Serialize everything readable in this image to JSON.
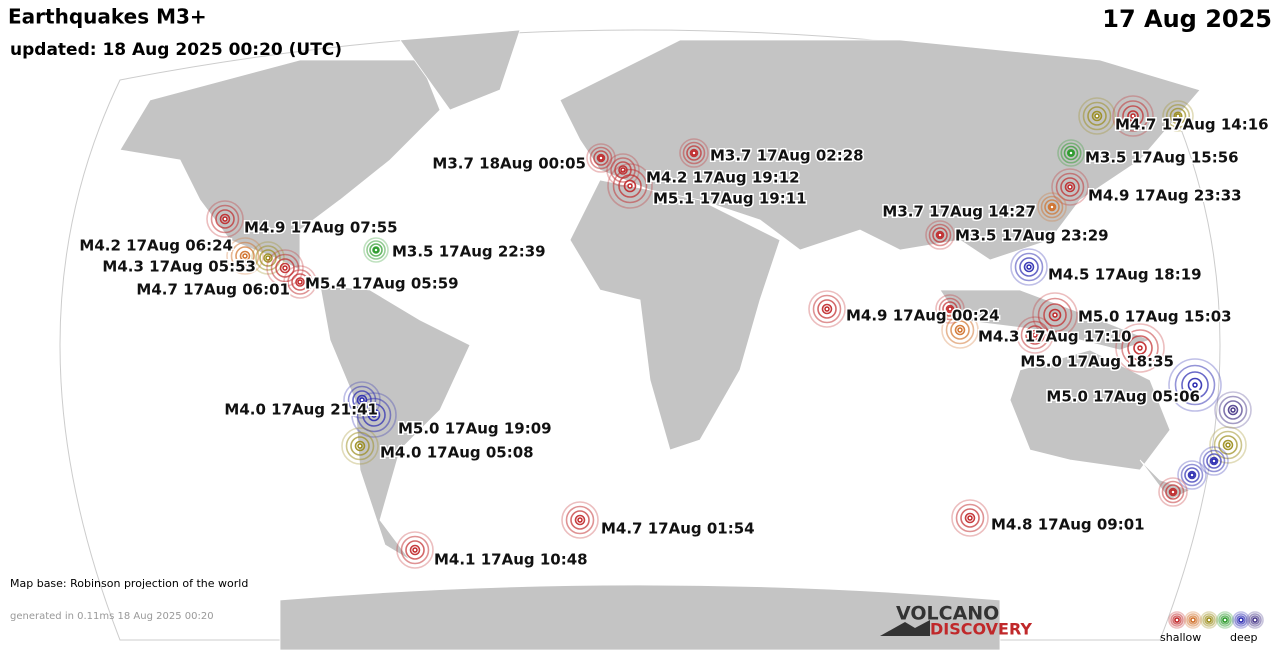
{
  "header": {
    "title": "Earthquakes M3+",
    "date": "17 Aug 2025",
    "updated": "updated: 18 Aug 2025 00:20 (UTC)"
  },
  "events": [
    {
      "label": "M4.7 17Aug 14:16"
    },
    {
      "label": "M3.7 18Aug 00:05"
    },
    {
      "label": "M3.7 17Aug 02:28"
    },
    {
      "label": "M4.2 17Aug 19:12"
    },
    {
      "label": "M5.1 17Aug 19:11"
    },
    {
      "label": "M3.5 17Aug 15:56"
    },
    {
      "label": "M4.9 17Aug 23:33"
    },
    {
      "label": "M4.9 17Aug 07:55"
    },
    {
      "label": "M4.2 17Aug 06:24"
    },
    {
      "label": "M3.5 17Aug 22:39"
    },
    {
      "label": "M4.3 17Aug 05:53"
    },
    {
      "label": "M4.7 17Aug 06:01"
    },
    {
      "label": "M5.4 17Aug 05:59"
    },
    {
      "label": "M3.7 17Aug 14:27"
    },
    {
      "label": "M3.5 17Aug 23:29"
    },
    {
      "label": "M4.5 17Aug 18:19"
    },
    {
      "label": "M4.9 17Aug 00:24"
    },
    {
      "label": "M5.0 17Aug 15:03"
    },
    {
      "label": "M4.3 17Aug 17:10"
    },
    {
      "label": "M5.0 17Aug 18:35"
    },
    {
      "label": "M5.0 17Aug 05:06"
    },
    {
      "label": "M4.0 17Aug 21:41"
    },
    {
      "label": "M5.0 17Aug 19:09"
    },
    {
      "label": "M4.0 17Aug 05:08"
    },
    {
      "label": "M4.7 17Aug 01:54"
    },
    {
      "label": "M4.8 17Aug 09:01"
    },
    {
      "label": "M4.1 17Aug 10:48"
    }
  ],
  "footer": {
    "map_base": "Map base: Robinson projection of the world",
    "generated": "generated in 0.11ms 18 Aug 2025 00:20"
  },
  "logo": {
    "line1": "VOLCANO",
    "line2": "DISCOVERY"
  },
  "legend": {
    "shallow": "shallow",
    "deep": "deep"
  }
}
